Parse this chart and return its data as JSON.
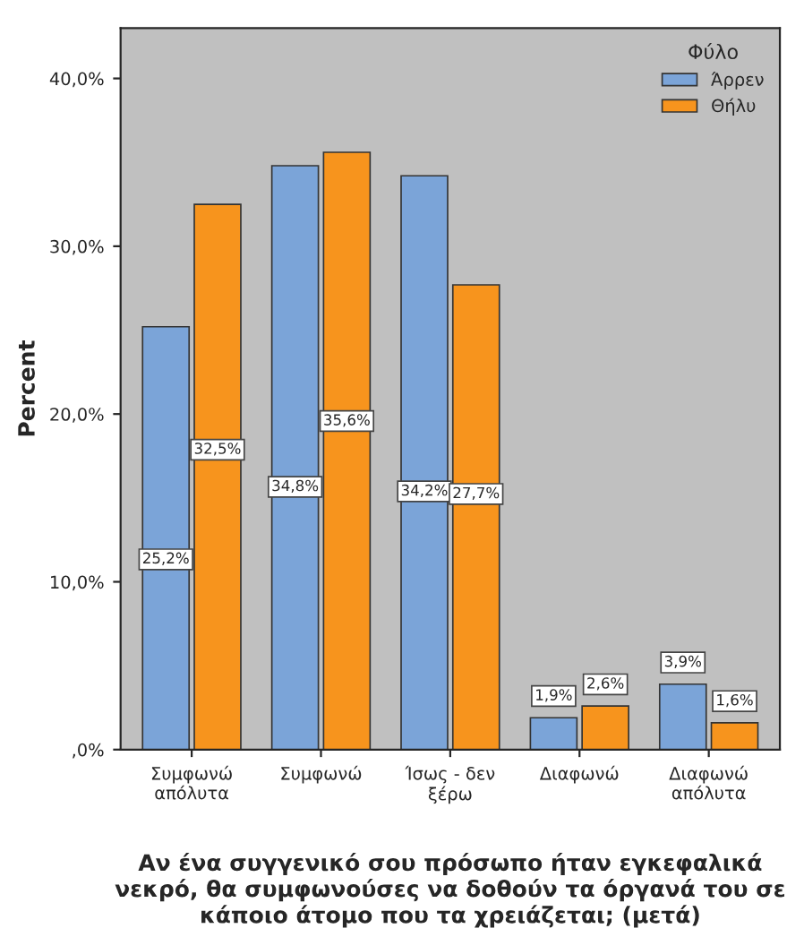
{
  "chart_data": {
    "type": "bar",
    "xlabel": "Αν ένα συγγενικό σου πρόσωπο ήταν εγκεφαλικά νεκρό, θα συμφωνούσες να δοθούν τα όργανά του σε κάποιο άτομο που τα χρειάζεται; (μετά)",
    "ylabel": "Percent",
    "legend_title": "Φύλο",
    "categories": [
      "Συμφωνώ\nαπόλυτα",
      "Συμφωνώ",
      "Ίσως - δεν\nξέρω",
      "Διαφωνώ",
      "Διαφωνώ\nαπόλυτα"
    ],
    "series": [
      {
        "name": "Άρρεν",
        "color": "#7ba4d8",
        "values": [
          25.2,
          34.8,
          34.2,
          1.9,
          3.9
        ],
        "value_labels": [
          "25,2%",
          "34,8%",
          "34,2%",
          "1,9%",
          "3,9%"
        ]
      },
      {
        "name": "Θήλυ",
        "color": "#f7941d",
        "values": [
          32.5,
          35.6,
          27.7,
          2.6,
          1.6
        ],
        "value_labels": [
          "32,5%",
          "35,6%",
          "27,7%",
          "2,6%",
          "1,6%"
        ]
      }
    ],
    "ylim": [
      0,
      43
    ],
    "yticks": [
      {
        "value": 0,
        "label": ",0%"
      },
      {
        "value": 10,
        "label": "10,0%"
      },
      {
        "value": 20,
        "label": "20,0%"
      },
      {
        "value": 30,
        "label": "30,0%"
      },
      {
        "value": 40,
        "label": "40,0%"
      }
    ],
    "legend": "top right",
    "grid": false
  }
}
